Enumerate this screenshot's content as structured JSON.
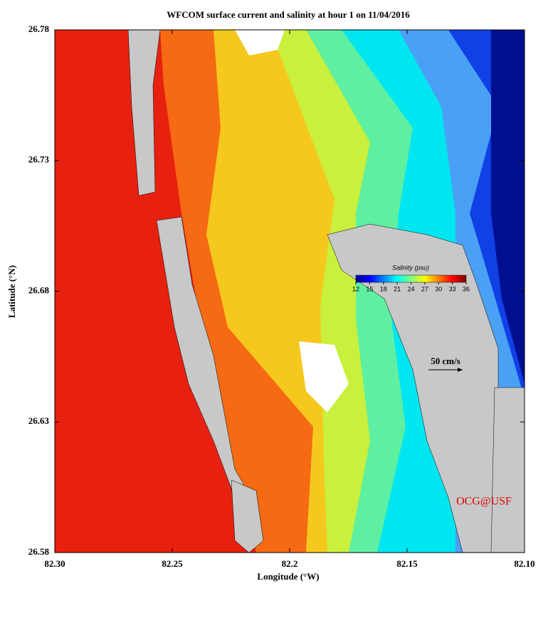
{
  "chart_data": {
    "type": "map",
    "title": "WFCOM surface current and salinity at hour 1 on 11/04/2016",
    "x_label": "Longitude (°W)",
    "y_label": "Latitude (°N)",
    "xlim": [
      82.3,
      82.1
    ],
    "xticks": [
      {
        "value": 82.3,
        "label": "82.30"
      },
      82.25,
      82.2,
      82.15,
      {
        "value": 82.1,
        "label": "82.10"
      }
    ],
    "ylim": [
      26.58,
      26.78
    ],
    "yticks": [
      26.58,
      26.63,
      26.68,
      26.73,
      26.78
    ],
    "colorbar": {
      "label": "Salinity (psu)",
      "lim": [
        12,
        36
      ],
      "ticks": [
        12,
        15,
        18,
        21,
        24,
        27,
        30,
        33,
        36
      ]
    },
    "scale_label": "50 cm/s",
    "credit": "OCG@USF"
  }
}
